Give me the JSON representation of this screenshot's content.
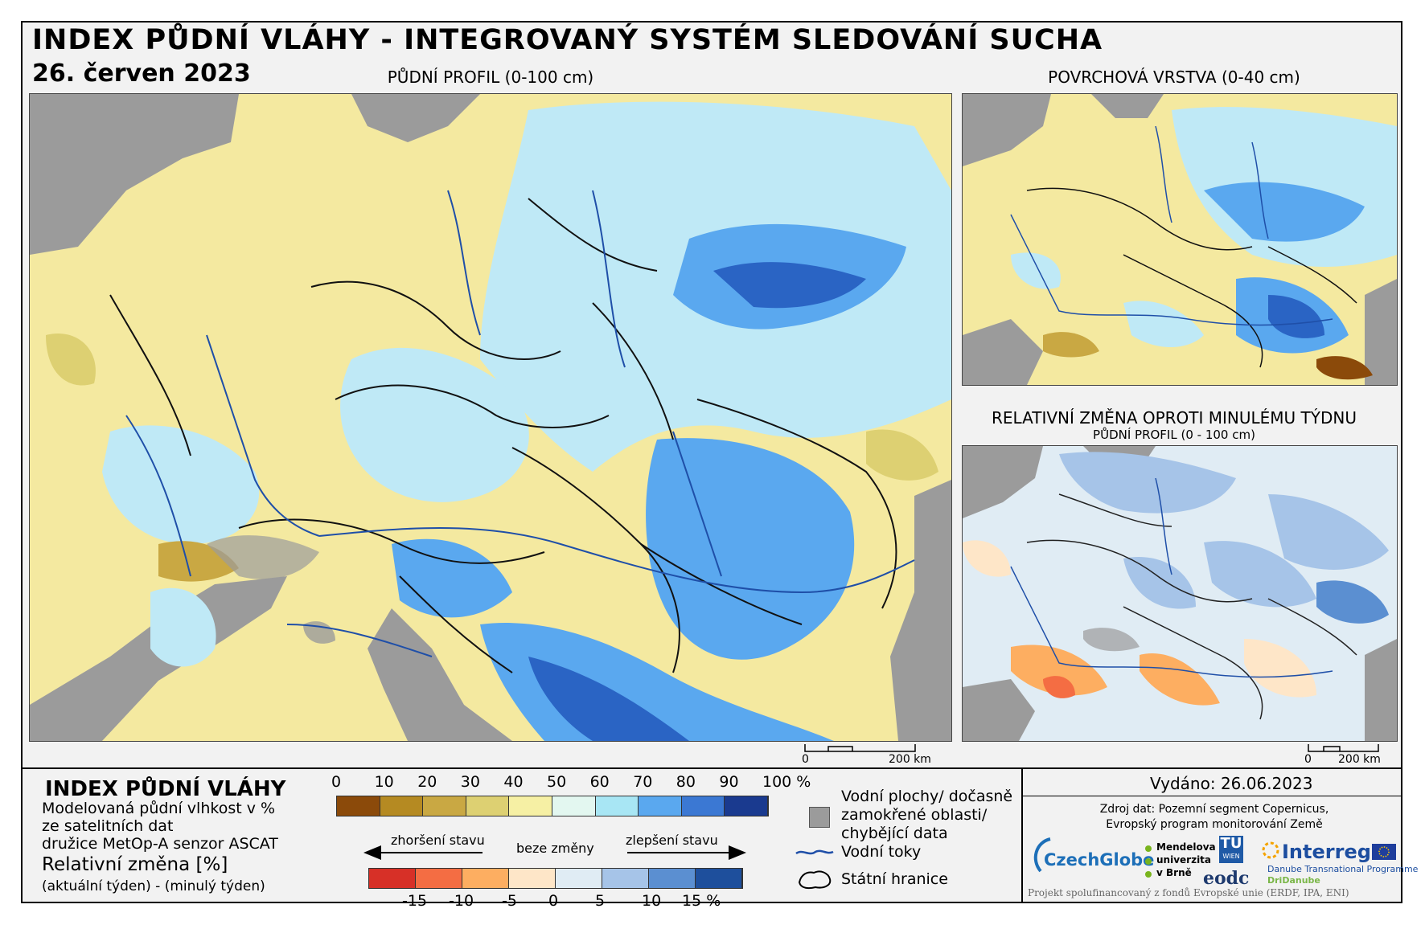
{
  "header": {
    "title": "INDEX PŮDNÍ VLÁHY - INTEGROVANÝ SYSTÉM SLEDOVÁNÍ SUCHA",
    "date": "26. červen 2023"
  },
  "panels": {
    "main": {
      "label": "PŮDNÍ PROFIL (0-100 cm)"
    },
    "surface": {
      "label": "POVRCHOVÁ VRSTVA (0-40 cm)"
    },
    "change": {
      "label": "RELATIVNÍ ZMĚNA OPROTI MINULÉMU TÝDNU",
      "sublabel": "PŮDNÍ PROFIL (0 - 100 cm)"
    }
  },
  "scalebars": {
    "main": {
      "zero": "0",
      "end": "200 km"
    },
    "small": {
      "zero": "0",
      "end": "200 km"
    }
  },
  "legend": {
    "title": "INDEX PŮDNÍ VLÁHY",
    "desc_lines": [
      "Modelovaná půdní vlhkost v %",
      "ze satelitních dat",
      "družice MetOp-A senzor ASCAT"
    ],
    "change_title": "Relativní změna [%]",
    "change_desc": "(aktuální týden) - (minulý týden)",
    "index_ticks": [
      "0",
      "10",
      "20",
      "30",
      "40",
      "50",
      "60",
      "70",
      "80",
      "90",
      "100 %"
    ],
    "index_colors": [
      "#8b4a0a",
      "#b58a22",
      "#c9a843",
      "#ddd072",
      "#f6f0a4",
      "#e3f7f0",
      "#a8e6f4",
      "#5aa8ef",
      "#3b78d3",
      "#1a3a8f"
    ],
    "change_colors": [
      "#d73027",
      "#f46d43",
      "#fdae61",
      "#fee6c8",
      "#e0ecf4",
      "#a6c4e8",
      "#5b8fd1",
      "#1e4f9c"
    ],
    "change_ticks": [
      "-15",
      "-10",
      "-5",
      "0",
      "5",
      "10",
      "15 %"
    ],
    "worse_label": "zhoršení stavu",
    "nochange_label": "beze změny",
    "better_label": "zlepšení stavu",
    "water_label_lines": [
      "Vodní plochy/ dočasně",
      "zamokřené oblasti/",
      "chybějící data"
    ],
    "rivers_label": "Vodní toky",
    "borders_label": "Státní hranice"
  },
  "footer": {
    "issued": "Vydáno: 26.06.2023",
    "source_line1": "Zdroj dat: Pozemní segment Copernicus,",
    "source_line2": "Evropský program monitorování Země",
    "logo_czechglobe": "CzechGlobe",
    "logo_mendel_1": "Mendelova",
    "logo_mendel_2": "univerzita",
    "logo_mendel_3": "v Brně",
    "logo_tu": "TU",
    "logo_tu_sub": "WIEN",
    "logo_eodc": "eodc",
    "logo_interreg": "Interreg",
    "logo_danube_1": "Danube Transnational Programme",
    "logo_danube_2": "DriDanube",
    "funding": "Projekt spolufinancovaný z fondů Evropské unie (ERDF, IPA, ENI)"
  },
  "colors": {
    "grey_land": "#9b9b9b",
    "yellow": "#f4e9a0",
    "blue_light": "#bfe9f6",
    "blue": "#5aa8ef",
    "blue_dark": "#2a64c4",
    "river": "#1f4fa8"
  }
}
